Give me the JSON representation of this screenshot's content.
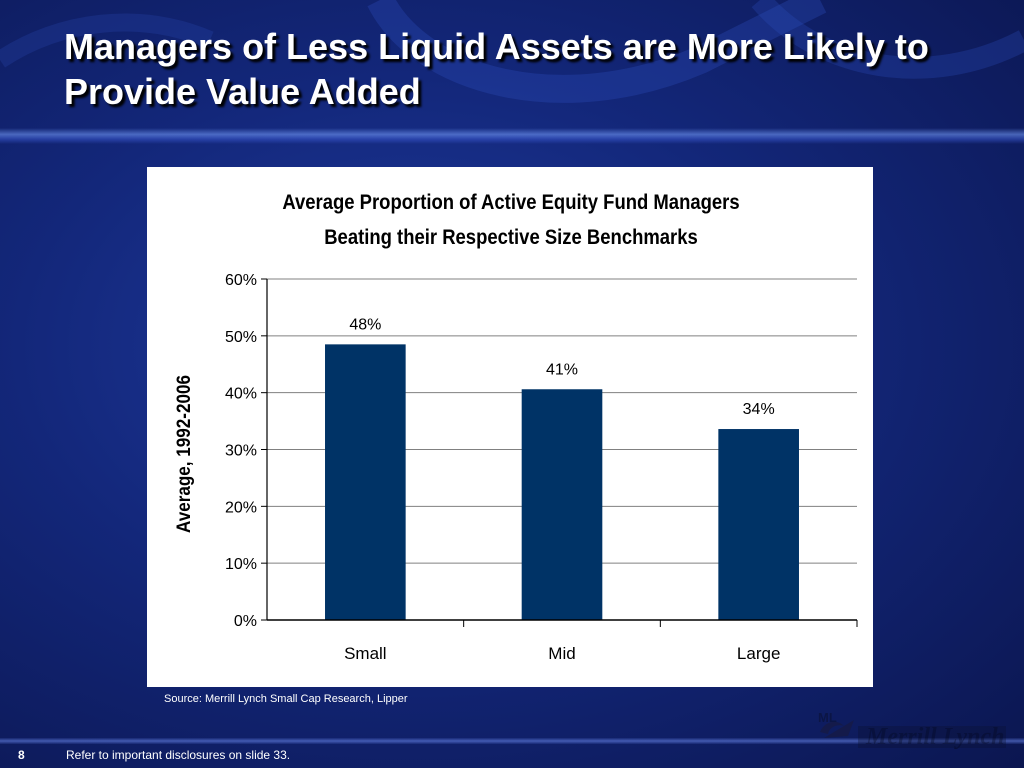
{
  "slide": {
    "title": "Managers of Less Liquid Assets are More Likely to Provide Value Added",
    "source": "Source: Merrill Lynch Small Cap Research, Lipper",
    "page_number": "8",
    "disclosure": "Refer to important disclosures on slide 33.",
    "logo_text": "Merrill Lynch",
    "logo_initials": "ML"
  },
  "colors": {
    "background": "#13277a",
    "bar": "#003366",
    "gridline": "#808080",
    "panel": "#ffffff"
  },
  "chart_data": {
    "type": "bar",
    "title": "Average Proportion of Active Equity Fund Managers",
    "subtitle": "Beating their Respective Size Benchmarks",
    "xlabel": "",
    "ylabel": "Average, 1992-2006",
    "categories": [
      "Small",
      "Mid",
      "Large"
    ],
    "values": [
      48.5,
      40.6,
      33.6
    ],
    "data_labels": [
      "48%",
      "41%",
      "34%"
    ],
    "yticks": [
      "0%",
      "10%",
      "20%",
      "30%",
      "40%",
      "50%",
      "60%"
    ],
    "ylim": [
      0,
      60
    ],
    "grid": true,
    "legend": "none"
  }
}
